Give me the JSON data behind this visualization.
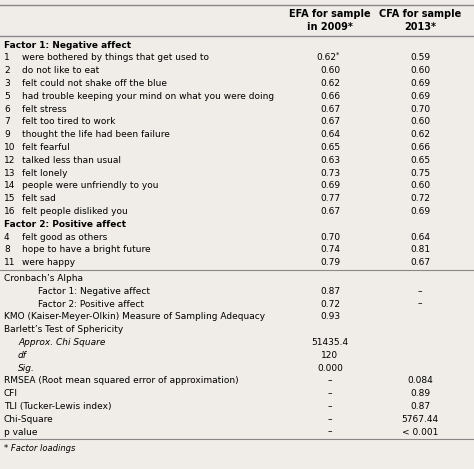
{
  "col_headers": [
    "EFA for sample\nin 2009*",
    "CFA for sample\n2013*"
  ],
  "rows": [
    {
      "type": "section",
      "num": "",
      "label": "Factor 1: Negative affect",
      "col1": "",
      "col2": ""
    },
    {
      "type": "data",
      "num": "1",
      "label": "were bothered by things that get used to",
      "col1": "0.62",
      "col1_super": "*",
      "col2": "0.59"
    },
    {
      "type": "data",
      "num": "2",
      "label": "do not like to eat",
      "col1": "0.60",
      "col1_super": "",
      "col2": "0.60"
    },
    {
      "type": "data",
      "num": "3",
      "label": "felt could not shake off the blue",
      "col1": "0.62",
      "col1_super": "",
      "col2": "0.69"
    },
    {
      "type": "data",
      "num": "5",
      "label": "had trouble keeping your mind on what you were doing",
      "col1": "0.66",
      "col1_super": "",
      "col2": "0.69"
    },
    {
      "type": "data",
      "num": "6",
      "label": "felt stress",
      "col1": "0.67",
      "col1_super": "",
      "col2": "0.70"
    },
    {
      "type": "data",
      "num": "7",
      "label": "felt too tired to work",
      "col1": "0.67",
      "col1_super": "",
      "col2": "0.60"
    },
    {
      "type": "data",
      "num": "9",
      "label": "thought the life had been failure",
      "col1": "0.64",
      "col1_super": "",
      "col2": "0.62"
    },
    {
      "type": "data",
      "num": "10",
      "label": "felt fearful",
      "col1": "0.65",
      "col1_super": "",
      "col2": "0.66"
    },
    {
      "type": "data",
      "num": "12",
      "label": "talked less than usual",
      "col1": "0.63",
      "col1_super": "",
      "col2": "0.65"
    },
    {
      "type": "data",
      "num": "13",
      "label": "felt lonely",
      "col1": "0.73",
      "col1_super": "",
      "col2": "0.75"
    },
    {
      "type": "data",
      "num": "14",
      "label": "people were unfriendly to you",
      "col1": "0.69",
      "col1_super": "",
      "col2": "0.60"
    },
    {
      "type": "data",
      "num": "15",
      "label": "felt sad",
      "col1": "0.77",
      "col1_super": "",
      "col2": "0.72"
    },
    {
      "type": "data",
      "num": "16",
      "label": "felt people disliked you",
      "col1": "0.67",
      "col1_super": "",
      "col2": "0.69"
    },
    {
      "type": "section",
      "num": "",
      "label": "Factor 2: Positive affect",
      "col1": "",
      "col2": ""
    },
    {
      "type": "data",
      "num": "4",
      "label": "felt good as others",
      "col1": "0.70",
      "col1_super": "",
      "col2": "0.64"
    },
    {
      "type": "data",
      "num": "8",
      "label": "hope to have a bright future",
      "col1": "0.74",
      "col1_super": "",
      "col2": "0.81"
    },
    {
      "type": "data",
      "num": "11",
      "label": "were happy",
      "col1": "0.79",
      "col1_super": "",
      "col2": "0.67"
    },
    {
      "type": "divider"
    },
    {
      "type": "plain",
      "num": "",
      "label": "Cronbach’s Alpha",
      "col1": "",
      "col2": ""
    },
    {
      "type": "indent",
      "num": "",
      "label": "Factor 1: Negative affect",
      "col1": "0.87",
      "col2": "–"
    },
    {
      "type": "indent",
      "num": "",
      "label": "Factor 2: Positive affect",
      "col1": "0.72",
      "col2": "–"
    },
    {
      "type": "plain",
      "num": "",
      "label": "KMO (Kaiser-Meyer-Olkin) Measure of Sampling Adequacy",
      "col1": "0.93",
      "col2": ""
    },
    {
      "type": "plain",
      "num": "",
      "label": "Barlett’s Test of Sphericity",
      "col1": "",
      "col2": ""
    },
    {
      "type": "italic",
      "num": "",
      "label": "Approx. Chi Square",
      "col1": "51435.4",
      "col2": ""
    },
    {
      "type": "italic",
      "num": "",
      "label": "df",
      "col1": "120",
      "col2": ""
    },
    {
      "type": "italic",
      "num": "",
      "label": "Sig.",
      "col1": "0.000",
      "col2": ""
    },
    {
      "type": "plain",
      "num": "",
      "label": "RMSEA (Root mean squared error of approximation)",
      "col1": "–",
      "col2": "0.084"
    },
    {
      "type": "plain",
      "num": "",
      "label": "CFI",
      "col1": "–",
      "col2": "0.89"
    },
    {
      "type": "plain",
      "num": "",
      "label": "TLI (Tucker-Lewis index)",
      "col1": "–",
      "col2": "0.87"
    },
    {
      "type": "plain",
      "num": "",
      "label": "Chi-Square",
      "col1": "–",
      "col2": "5767.44"
    },
    {
      "type": "plain",
      "num": "",
      "label": "p value",
      "col1": "–",
      "col2": "< 0.001"
    }
  ],
  "footnote": "* Factor loadings",
  "bg_color": "#f0ede8",
  "text_color": "#000000",
  "line_color": "#888888",
  "fs_header": 7.0,
  "fs_data": 6.5,
  "fs_footnote": 6.0
}
